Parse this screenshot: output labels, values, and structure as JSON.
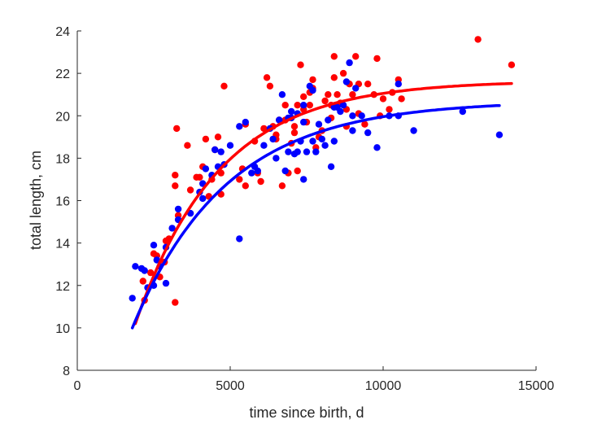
{
  "chart_data": {
    "type": "scatter",
    "title": "",
    "xlabel": "time since birth, d",
    "ylabel": "total length, cm",
    "xlim": [
      0,
      15000
    ],
    "ylim": [
      8,
      24
    ],
    "xticks": [
      "0",
      "5000",
      "10000",
      "15000"
    ],
    "yticks": [
      "8",
      "10",
      "12",
      "14",
      "16",
      "18",
      "20",
      "22",
      "24"
    ],
    "grid": false,
    "legend": "none",
    "series": [
      {
        "color": "#ff0000",
        "points": [
          [
            2150,
            12.2
          ],
          [
            2200,
            11.3
          ],
          [
            2400,
            12.6
          ],
          [
            2500,
            13.5
          ],
          [
            2600,
            13.4
          ],
          [
            2700,
            12.4
          ],
          [
            2850,
            13.1
          ],
          [
            2900,
            14.1
          ],
          [
            3000,
            14.2
          ],
          [
            3200,
            17.2
          ],
          [
            3200,
            16.7
          ],
          [
            3250,
            19.4
          ],
          [
            3200,
            11.2
          ],
          [
            3300,
            15.3
          ],
          [
            3600,
            18.6
          ],
          [
            3700,
            16.5
          ],
          [
            4000,
            17.1
          ],
          [
            4100,
            17.6
          ],
          [
            4200,
            18.9
          ],
          [
            4300,
            16.2
          ],
          [
            4400,
            17.0
          ],
          [
            4600,
            19.0
          ],
          [
            4700,
            17.3
          ],
          [
            4700,
            16.3
          ],
          [
            4800,
            21.4
          ],
          [
            5300,
            17.0
          ],
          [
            5400,
            17.5
          ],
          [
            5500,
            19.6
          ],
          [
            5500,
            16.7
          ],
          [
            5900,
            17.3
          ],
          [
            6000,
            16.9
          ],
          [
            6100,
            19.4
          ],
          [
            6200,
            21.8
          ],
          [
            6300,
            21.4
          ],
          [
            6400,
            19.5
          ],
          [
            6500,
            18.9
          ],
          [
            6600,
            19.8
          ],
          [
            6700,
            16.7
          ],
          [
            6800,
            19.8
          ],
          [
            6900,
            17.3
          ],
          [
            7000,
            18.7
          ],
          [
            7100,
            19.2
          ],
          [
            7200,
            20.5
          ],
          [
            7200,
            17.4
          ],
          [
            7300,
            22.4
          ],
          [
            7400,
            20.9
          ],
          [
            7400,
            20.3
          ],
          [
            7500,
            19.7
          ],
          [
            7600,
            20.5
          ],
          [
            7700,
            21.3
          ],
          [
            7700,
            21.7
          ],
          [
            7800,
            18.5
          ],
          [
            7900,
            19.0
          ],
          [
            8000,
            19.3
          ],
          [
            8100,
            20.7
          ],
          [
            8200,
            21.0
          ],
          [
            8300,
            19.9
          ],
          [
            8400,
            21.8
          ],
          [
            8400,
            22.8
          ],
          [
            8500,
            21.0
          ],
          [
            8600,
            20.6
          ],
          [
            8700,
            22.0
          ],
          [
            8800,
            19.5
          ],
          [
            8800,
            20.3
          ],
          [
            8900,
            21.5
          ],
          [
            9000,
            21.0
          ],
          [
            9100,
            22.8
          ],
          [
            9200,
            21.5
          ],
          [
            9400,
            19.6
          ],
          [
            9500,
            21.5
          ],
          [
            9700,
            21.0
          ],
          [
            9800,
            22.7
          ],
          [
            10000,
            20.8
          ],
          [
            10200,
            20.3
          ],
          [
            10300,
            21.1
          ],
          [
            10500,
            21.7
          ],
          [
            10600,
            20.8
          ],
          [
            13100,
            23.6
          ],
          [
            14200,
            22.4
          ],
          [
            6800,
            20.5
          ],
          [
            7100,
            19.5
          ],
          [
            7600,
            21.1
          ],
          [
            8300,
            20.5
          ],
          [
            9200,
            20.1
          ],
          [
            9900,
            20.0
          ],
          [
            6500,
            19.1
          ],
          [
            5800,
            18.8
          ],
          [
            4500,
            18.4
          ],
          [
            3900,
            17.1
          ]
        ]
      },
      {
        "color": "#0000ff",
        "points": [
          [
            1800,
            11.4
          ],
          [
            1900,
            12.9
          ],
          [
            2100,
            12.8
          ],
          [
            2200,
            12.7
          ],
          [
            2300,
            11.9
          ],
          [
            2500,
            13.9
          ],
          [
            2500,
            12.0
          ],
          [
            2600,
            13.2
          ],
          [
            2700,
            12.9
          ],
          [
            2900,
            13.8
          ],
          [
            2900,
            12.1
          ],
          [
            3100,
            14.7
          ],
          [
            3300,
            15.6
          ],
          [
            3300,
            15.1
          ],
          [
            3700,
            15.4
          ],
          [
            4000,
            16.4
          ],
          [
            4100,
            16.1
          ],
          [
            4100,
            16.8
          ],
          [
            4200,
            17.5
          ],
          [
            4400,
            17.2
          ],
          [
            4500,
            18.4
          ],
          [
            4600,
            17.6
          ],
          [
            4700,
            18.3
          ],
          [
            4800,
            17.7
          ],
          [
            5000,
            18.6
          ],
          [
            5300,
            19.5
          ],
          [
            5300,
            14.2
          ],
          [
            5500,
            19.7
          ],
          [
            5700,
            17.3
          ],
          [
            5800,
            17.6
          ],
          [
            5900,
            17.4
          ],
          [
            6100,
            18.6
          ],
          [
            6300,
            19.4
          ],
          [
            6400,
            18.9
          ],
          [
            6500,
            18.0
          ],
          [
            6600,
            19.8
          ],
          [
            6700,
            21.0
          ],
          [
            6800,
            17.4
          ],
          [
            6900,
            18.3
          ],
          [
            7000,
            19.9
          ],
          [
            7100,
            18.2
          ],
          [
            7200,
            20.1
          ],
          [
            7200,
            18.3
          ],
          [
            7300,
            18.8
          ],
          [
            7400,
            17.0
          ],
          [
            7400,
            19.7
          ],
          [
            7500,
            18.3
          ],
          [
            7600,
            21.4
          ],
          [
            7700,
            21.2
          ],
          [
            7700,
            18.8
          ],
          [
            7800,
            18.3
          ],
          [
            7900,
            19.6
          ],
          [
            8000,
            18.9
          ],
          [
            8100,
            18.6
          ],
          [
            8200,
            19.8
          ],
          [
            8300,
            17.6
          ],
          [
            8400,
            18.8
          ],
          [
            8500,
            20.4
          ],
          [
            8600,
            20.2
          ],
          [
            8700,
            20.5
          ],
          [
            8800,
            21.6
          ],
          [
            8900,
            22.5
          ],
          [
            9000,
            19.3
          ],
          [
            9100,
            21.3
          ],
          [
            9300,
            20.0
          ],
          [
            9500,
            19.2
          ],
          [
            9800,
            18.5
          ],
          [
            10200,
            20.0
          ],
          [
            10500,
            21.5
          ],
          [
            10500,
            20.0
          ],
          [
            11000,
            19.3
          ],
          [
            12600,
            20.2
          ],
          [
            13800,
            19.1
          ],
          [
            6900,
            19.9
          ],
          [
            7400,
            20.5
          ],
          [
            8400,
            20.4
          ],
          [
            9000,
            20.0
          ],
          [
            7000,
            20.2
          ]
        ]
      }
    ],
    "curves": [
      {
        "color": "#ff0000",
        "Linf": 21.65,
        "L0": 10.2,
        "k": 0.000365,
        "x0": 1900,
        "x1": 14200
      },
      {
        "color": "#0000ff",
        "Linf": 20.7,
        "L0": 10.0,
        "k": 0.000325,
        "x0": 1800,
        "x1": 13800
      }
    ]
  }
}
